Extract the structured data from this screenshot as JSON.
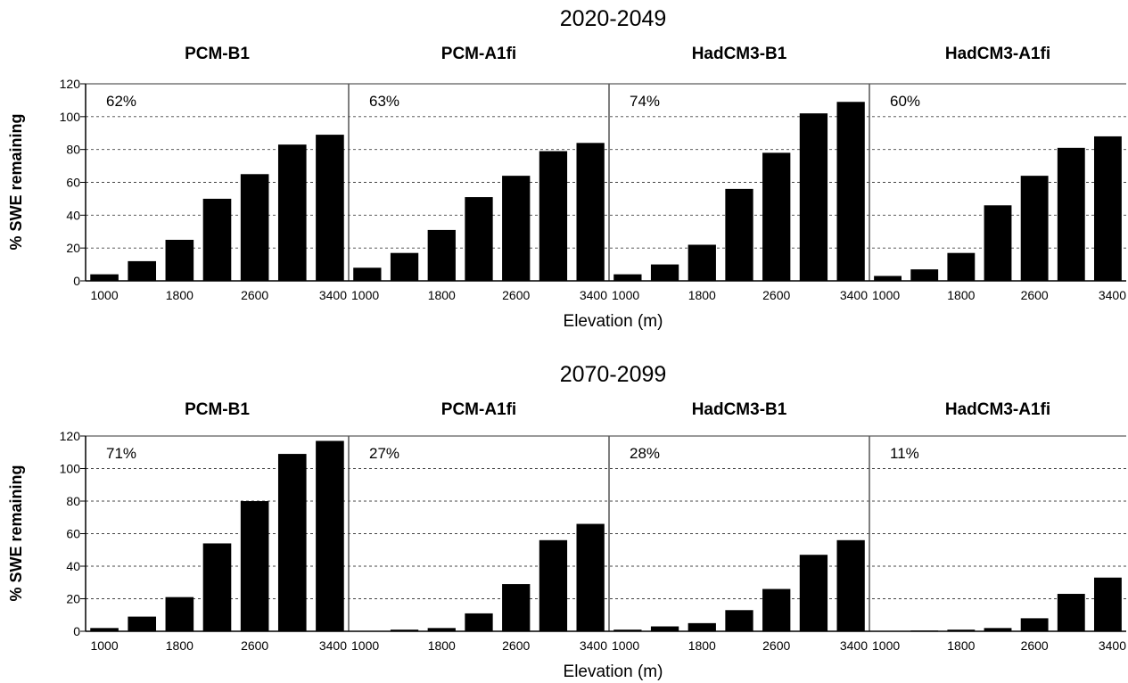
{
  "figure": {
    "ylabel": "% SWE remaining",
    "xlabel": "Elevation (m)"
  },
  "chart_data": [
    {
      "type": "bar",
      "period": "2020-2049",
      "ylabel": "% SWE remaining",
      "xlabel": "Elevation (m)",
      "ylim": [
        0,
        120
      ],
      "yticks": [
        0,
        20,
        40,
        60,
        80,
        100,
        120
      ],
      "xticks": [
        "1000",
        "1800",
        "2600",
        "3400"
      ],
      "x": [
        1000,
        1400,
        1800,
        2200,
        2600,
        3000,
        3400
      ],
      "grid": "horizontal dashed",
      "panels": [
        {
          "name": "PCM-B1",
          "pct": "62%",
          "values": [
            4,
            12,
            25,
            50,
            65,
            83,
            89
          ]
        },
        {
          "name": "PCM-A1fi",
          "pct": "63%",
          "values": [
            8,
            17,
            31,
            51,
            64,
            79,
            84
          ]
        },
        {
          "name": "HadCM3-B1",
          "pct": "74%",
          "values": [
            4,
            10,
            22,
            56,
            78,
            102,
            109
          ]
        },
        {
          "name": "HadCM3-A1fi",
          "pct": "60%",
          "values": [
            3,
            7,
            17,
            46,
            64,
            81,
            88
          ]
        }
      ]
    },
    {
      "type": "bar",
      "period": "2070-2099",
      "ylabel": "% SWE remaining",
      "xlabel": "Elevation (m)",
      "ylim": [
        0,
        120
      ],
      "yticks": [
        0,
        20,
        40,
        60,
        80,
        100,
        120
      ],
      "xticks": [
        "1000",
        "1800",
        "2600",
        "3400"
      ],
      "x": [
        1000,
        1400,
        1800,
        2200,
        2600,
        3000,
        3400
      ],
      "grid": "horizontal dashed",
      "panels": [
        {
          "name": "PCM-B1",
          "pct": "71%",
          "values": [
            2,
            9,
            21,
            54,
            80,
            109,
            117
          ]
        },
        {
          "name": "PCM-A1fi",
          "pct": "27%",
          "values": [
            0,
            1,
            2,
            11,
            29,
            56,
            66
          ]
        },
        {
          "name": "HadCM3-B1",
          "pct": "28%",
          "values": [
            1,
            3,
            5,
            13,
            26,
            47,
            56
          ]
        },
        {
          "name": "HadCM3-A1fi",
          "pct": "11%",
          "values": [
            0,
            0.5,
            1,
            2,
            8,
            23,
            33
          ]
        }
      ]
    }
  ]
}
